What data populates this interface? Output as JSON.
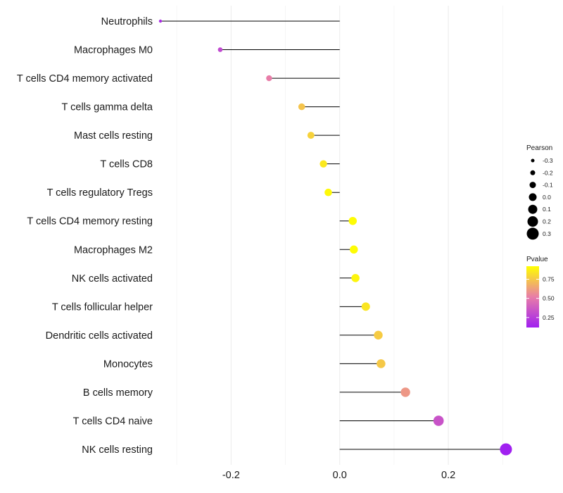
{
  "chart_data": {
    "type": "lollipop",
    "title": "",
    "xlabel": "",
    "ylabel": "",
    "xlim": [
      -0.33,
      0.31
    ],
    "x_ticks": [
      -0.2,
      0.0,
      0.2
    ],
    "x_tick_labels": [
      "-0.2",
      "0.0",
      "0.2"
    ],
    "grid": true,
    "categories": [
      "Neutrophils",
      "Macrophages M0",
      "T cells CD4 memory activated",
      "T cells gamma delta",
      "Mast cells resting",
      "T cells CD8",
      "T cells regulatory  Tregs",
      "T cells CD4 memory resting",
      "Macrophages M2",
      "NK cells activated",
      "T cells follicular helper",
      "Dendritic cells activated",
      "Monocytes",
      "B cells memory",
      "T cells CD4 naive",
      "NK cells resting"
    ],
    "pearson": [
      -0.33,
      -0.22,
      -0.13,
      -0.07,
      -0.053,
      -0.03,
      -0.021,
      0.024,
      0.026,
      0.029,
      0.048,
      0.071,
      0.076,
      0.121,
      0.182,
      0.306
    ],
    "pvalue": [
      0.18,
      0.3,
      0.52,
      0.74,
      0.78,
      0.85,
      0.9,
      0.91,
      0.91,
      0.89,
      0.84,
      0.76,
      0.75,
      0.6,
      0.34,
      0.12
    ],
    "legends": {
      "size": {
        "title": "Pearson",
        "values": [
          -0.3,
          -0.2,
          -0.1,
          0.0,
          0.1,
          0.2,
          0.3
        ],
        "labels": [
          "-0.3",
          "-0.2",
          "-0.1",
          "0.0",
          "0.1",
          "0.2",
          "0.3"
        ]
      },
      "color": {
        "title": "Pvalue",
        "min": 0.12,
        "max": 0.92,
        "breaks": [
          0.25,
          0.5,
          0.75
        ],
        "labels": [
          "0.25",
          "0.50",
          "0.75"
        ],
        "low_color": "#a020f0",
        "mid_color": "#e87da8",
        "high_color": "#ffff00"
      }
    }
  }
}
